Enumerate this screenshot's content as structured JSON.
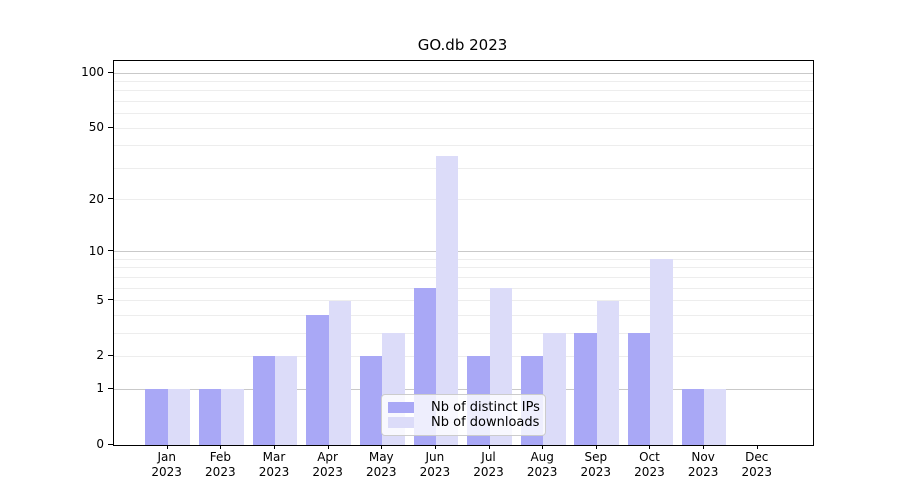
{
  "title": "GO.db 2023",
  "colors": {
    "ips_bar": "#a9a8f6",
    "downloads_bar": "#dcdcf9",
    "grid_major": "#c9c9c9",
    "grid_minor": "#ededed",
    "spine": "#000000",
    "legend_border": "#cccccc",
    "legend_background": "rgba(255,255,255,0.8)"
  },
  "chart_data": {
    "type": "bar",
    "title": "GO.db 2023",
    "y_scale": "log1p",
    "ylim": [
      0,
      116
    ],
    "grid": "on",
    "legend_position": "lower-center-inside",
    "categories": [
      {
        "month": "Jan",
        "year": "2023"
      },
      {
        "month": "Feb",
        "year": "2023"
      },
      {
        "month": "Mar",
        "year": "2023"
      },
      {
        "month": "Apr",
        "year": "2023"
      },
      {
        "month": "May",
        "year": "2023"
      },
      {
        "month": "Jun",
        "year": "2023"
      },
      {
        "month": "Jul",
        "year": "2023"
      },
      {
        "month": "Aug",
        "year": "2023"
      },
      {
        "month": "Sep",
        "year": "2023"
      },
      {
        "month": "Oct",
        "year": "2023"
      },
      {
        "month": "Nov",
        "year": "2023"
      },
      {
        "month": "Dec",
        "year": "2023"
      }
    ],
    "series": [
      {
        "name": "Nb of distinct IPs",
        "color": "#a9a8f6",
        "values": [
          1,
          1,
          2,
          4,
          2,
          6,
          2,
          2,
          3,
          3,
          1,
          0
        ]
      },
      {
        "name": "Nb of downloads",
        "color": "#dcdcf9",
        "values": [
          1,
          1,
          2,
          5,
          3,
          35,
          6,
          3,
          5,
          9,
          1,
          0
        ]
      }
    ],
    "y_ticks": [
      0,
      1,
      2,
      5,
      10,
      20,
      50,
      100
    ],
    "xlabel": "",
    "ylabel": ""
  }
}
